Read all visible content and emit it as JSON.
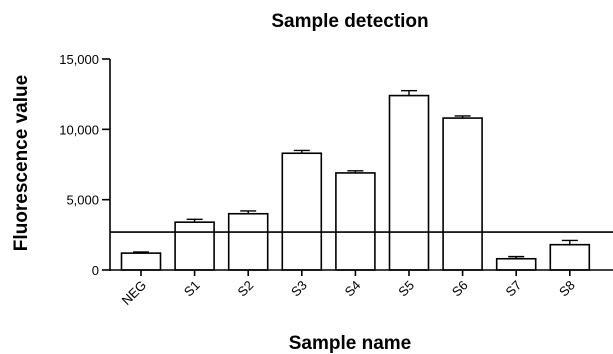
{
  "chart_data": {
    "type": "bar",
    "title": "Sample detection",
    "xlabel": "Sample name",
    "ylabel": "Fluorescence value",
    "categories": [
      "NEG",
      "S1",
      "S2",
      "S3",
      "S4",
      "S5",
      "S6",
      "S7",
      "S8"
    ],
    "values": [
      1200,
      3400,
      4000,
      8300,
      6900,
      12400,
      10800,
      800,
      1800
    ],
    "errors": [
      80,
      200,
      200,
      200,
      150,
      350,
      150,
      150,
      300
    ],
    "ylim": [
      0,
      15000
    ],
    "yticks": [
      0,
      5000,
      10000,
      15000
    ],
    "ytick_labels": [
      "0",
      "5,000",
      "10,000",
      "15,000"
    ],
    "threshold": 2700,
    "grid": false,
    "legend": "none"
  }
}
